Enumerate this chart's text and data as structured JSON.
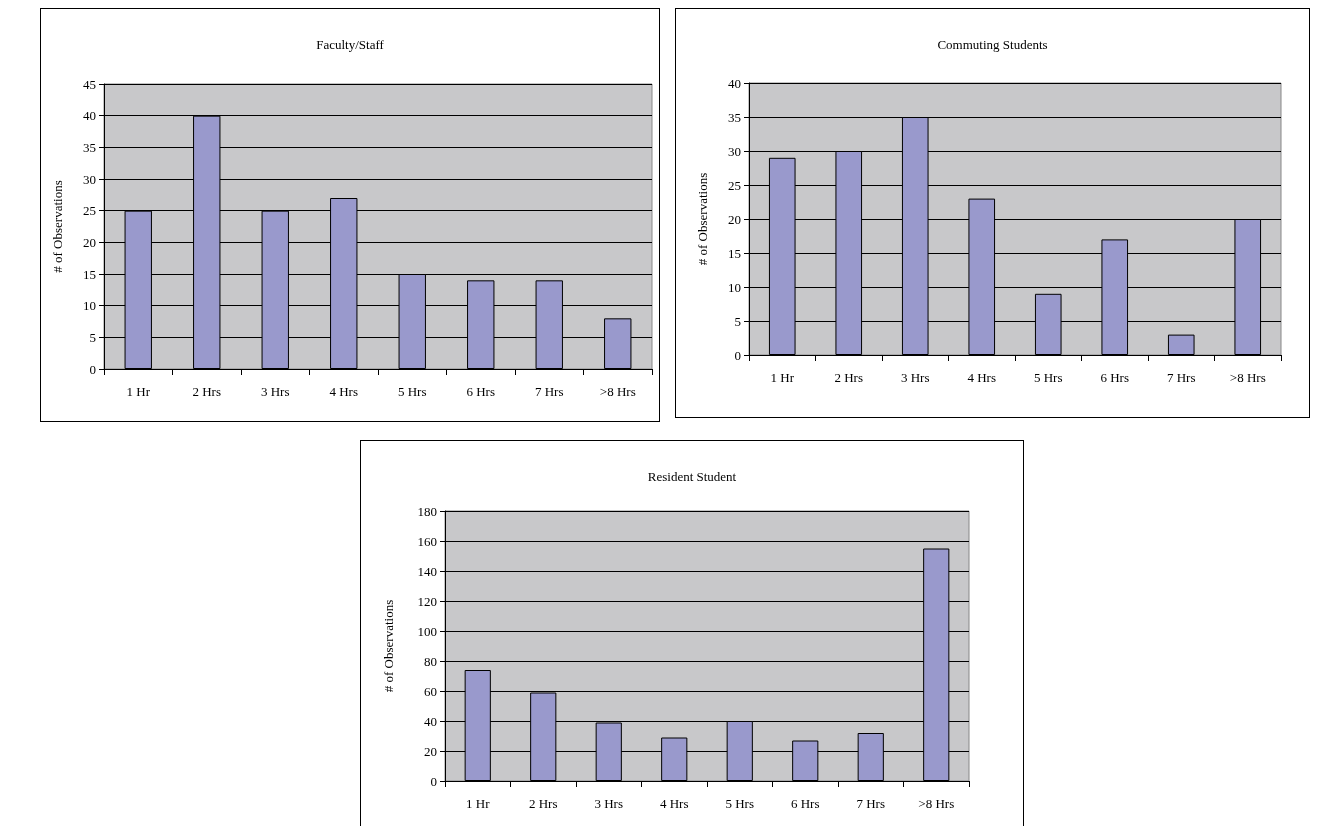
{
  "chart_data": [
    {
      "type": "bar",
      "title": "Faculty/Staff",
      "ylabel": "# of Observations",
      "categories": [
        "1 Hr",
        "2 Hrs",
        "3 Hrs",
        "4 Hrs",
        "5 Hrs",
        "6 Hrs",
        "7 Hrs",
        ">8 Hrs"
      ],
      "values": [
        25,
        40,
        25,
        27,
        15,
        14,
        14,
        8
      ],
      "color": "#9999cc",
      "ylim": [
        0,
        45
      ],
      "yticks": [
        0,
        5,
        10,
        15,
        20,
        25,
        30,
        35,
        40,
        45
      ],
      "grid": "y"
    },
    {
      "type": "bar",
      "title": "Commuting Students",
      "ylabel": "# of Observations",
      "categories": [
        "1 Hr",
        "2 Hrs",
        "3 Hrs",
        "4 Hrs",
        "5 Hrs",
        "6 Hrs",
        "7 Hrs",
        ">8 Hrs"
      ],
      "values": [
        29,
        30,
        35,
        23,
        9,
        17,
        3,
        20
      ],
      "color": "#9999cc",
      "ylim": [
        0,
        40
      ],
      "yticks": [
        0,
        5,
        10,
        15,
        20,
        25,
        30,
        35,
        40
      ],
      "grid": "y"
    },
    {
      "type": "bar",
      "title": "Resident Student",
      "ylabel": "# of Observations",
      "categories": [
        "1 Hr",
        "2 Hrs",
        "3 Hrs",
        "4 Hrs",
        "5 Hrs",
        "6 Hrs",
        "7 Hrs",
        ">8 Hrs"
      ],
      "values": [
        74,
        59,
        39,
        29,
        40,
        27,
        32,
        155
      ],
      "color": "#9999cc",
      "ylim": [
        0,
        180
      ],
      "yticks": [
        0,
        20,
        40,
        60,
        80,
        100,
        120,
        140,
        160,
        180
      ],
      "grid": "y"
    }
  ]
}
